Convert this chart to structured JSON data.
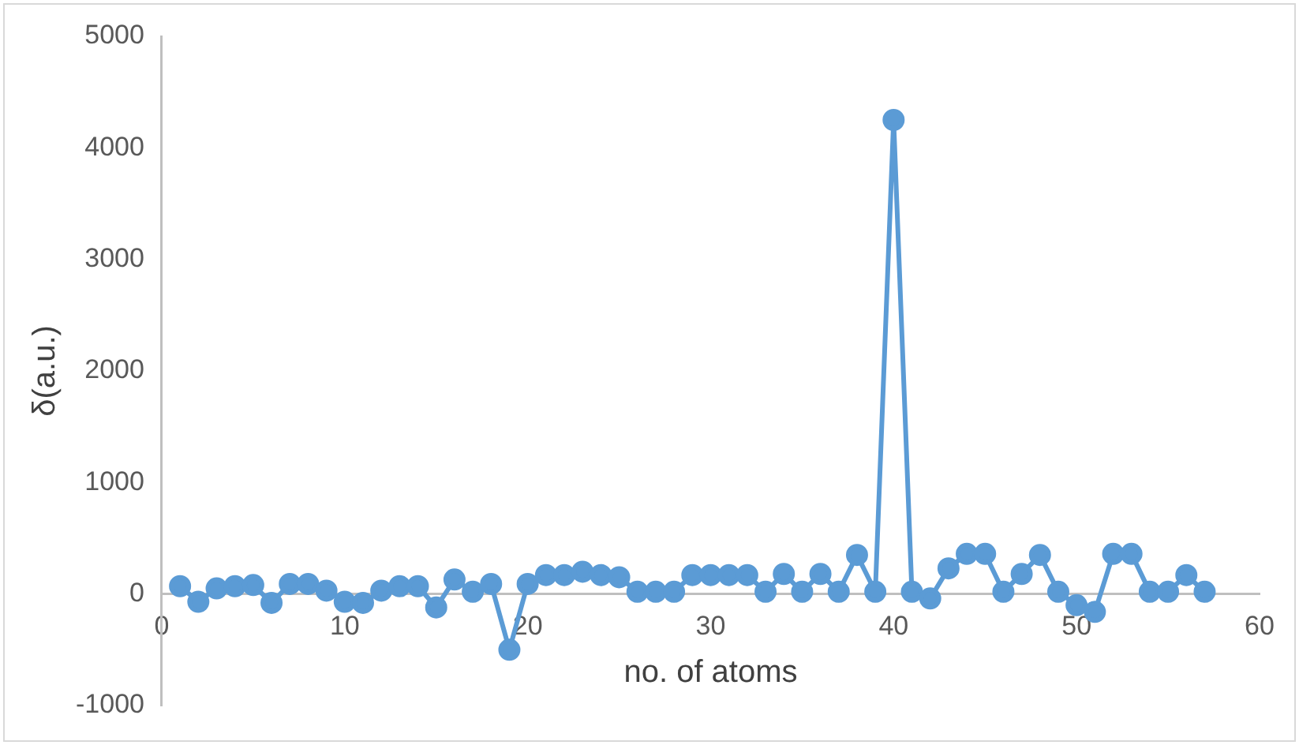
{
  "chart_data": {
    "type": "line",
    "xlabel": "no. of atoms",
    "ylabel": "δ(a.u.)",
    "x": [
      1,
      2,
      3,
      4,
      5,
      6,
      7,
      8,
      9,
      10,
      11,
      12,
      13,
      14,
      15,
      16,
      17,
      18,
      19,
      20,
      21,
      22,
      23,
      24,
      25,
      26,
      27,
      28,
      29,
      30,
      31,
      32,
      33,
      34,
      35,
      36,
      37,
      38,
      39,
      40,
      41,
      42,
      43,
      44,
      45,
      46,
      47,
      48,
      49,
      50,
      51,
      52,
      53,
      54,
      55,
      56,
      57
    ],
    "series": [
      {
        "color": "#5b9bd5",
        "values": [
          70,
          -70,
          50,
          70,
          80,
          -80,
          90,
          90,
          30,
          -70,
          -80,
          30,
          70,
          70,
          -120,
          130,
          20,
          90,
          -500,
          90,
          170,
          170,
          200,
          170,
          150,
          20,
          20,
          20,
          170,
          170,
          170,
          170,
          20,
          180,
          20,
          180,
          20,
          350,
          20,
          4250,
          20,
          -40,
          230,
          360,
          360,
          20,
          180,
          350,
          20,
          -100,
          -160,
          360,
          360,
          20,
          20,
          170,
          20
        ]
      }
    ],
    "xlim": [
      0,
      60
    ],
    "xticks": [
      0,
      10,
      20,
      30,
      40,
      50,
      60
    ],
    "ylim": [
      -1000,
      5000
    ],
    "yticks": [
      -1000,
      0,
      1000,
      2000,
      3000,
      4000,
      5000
    ],
    "grid": false,
    "legend": false,
    "marker": "circle",
    "line_style": "solid"
  }
}
